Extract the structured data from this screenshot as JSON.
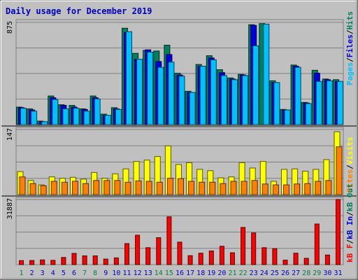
{
  "chart_data": [
    {
      "type": "bar",
      "title": "Daily usage for December 2019",
      "categories": [
        "1",
        "2",
        "3",
        "4",
        "5",
        "6",
        "7",
        "8",
        "9",
        "10",
        "11",
        "12",
        "13",
        "14",
        "15",
        "16",
        "17",
        "18",
        "19",
        "20",
        "21",
        "22",
        "23",
        "24",
        "25",
        "26",
        "27",
        "28",
        "29",
        "30",
        "31"
      ],
      "weekend_days": [
        "1",
        "7",
        "8",
        "14",
        "15",
        "21",
        "22",
        "28",
        "29"
      ],
      "ymax_label": "875",
      "ylim": [
        0,
        875
      ],
      "axis_label_parts": [
        "Pages",
        "/",
        "Files",
        "/",
        "Hits"
      ],
      "series": [
        {
          "name": "Hits",
          "color": "#00805c",
          "values": [
            150,
            135,
            30,
            245,
            170,
            165,
            135,
            245,
            90,
            145,
            825,
            610,
            635,
            630,
            680,
            440,
            285,
            515,
            590,
            470,
            400,
            430,
            855,
            865,
            375,
            130,
            510,
            190,
            465,
            390,
            385
          ]
        },
        {
          "name": "Files",
          "color": "#0000e0",
          "values": [
            145,
            125,
            25,
            230,
            165,
            150,
            130,
            230,
            80,
            135,
            790,
            560,
            640,
            540,
            600,
            425,
            275,
            500,
            570,
            445,
            390,
            425,
            850,
            0,
            360,
            125,
            500,
            185,
            440,
            385,
            370
          ]
        },
        {
          "name": "Pages",
          "color": "#00c0ff",
          "values": [
            140,
            115,
            25,
            215,
            135,
            140,
            115,
            220,
            80,
            130,
            795,
            560,
            620,
            490,
            535,
            415,
            275,
            500,
            555,
            420,
            385,
            420,
            675,
            860,
            360,
            125,
            490,
            180,
            370,
            375,
            370
          ]
        }
      ]
    },
    {
      "type": "bar",
      "ymax_label": "147",
      "ylim": [
        0,
        147
      ],
      "axis_label_parts": [
        "Sites",
        "/",
        "Visits"
      ],
      "series": [
        {
          "name": "Visits",
          "color": "#ffff00",
          "values": [
            52,
            32,
            22,
            40,
            37,
            39,
            35,
            50,
            37,
            47,
            58,
            75,
            78,
            86,
            110,
            68,
            72,
            57,
            54,
            38,
            40,
            72,
            60,
            75,
            30,
            57,
            58,
            53,
            57,
            79,
            142
          ]
        },
        {
          "name": "Sites",
          "color": "#ff8000",
          "values": [
            40,
            25,
            20,
            30,
            28,
            30,
            25,
            32,
            32,
            32,
            28,
            31,
            30,
            28,
            37,
            36,
            30,
            28,
            28,
            25,
            30,
            30,
            32,
            24,
            22,
            22,
            24,
            25,
            30,
            32,
            108
          ]
        }
      ]
    },
    {
      "type": "bar",
      "ymax_label": "31887",
      "ylim": [
        0,
        31887
      ],
      "axis_label_parts": [
        "kB F",
        "/",
        "kB In",
        "/",
        "kB Out"
      ],
      "series": [
        {
          "name": "kB F",
          "color": "#ff0000",
          "values": [
            1950,
            2000,
            2300,
            2100,
            3500,
            5500,
            4300,
            4300,
            2700,
            3300,
            10300,
            14400,
            8300,
            13200,
            23400,
            11000,
            4400,
            5600,
            6700,
            9000,
            5800,
            18200,
            15500,
            8300,
            7800,
            2200,
            5600,
            3100,
            19900,
            4700,
            31887
          ]
        }
      ]
    }
  ],
  "colors": {
    "title": "#0000c0",
    "frame": "#606060",
    "plot_bg": "#c0c0c0",
    "weekday_label": "#0000c0",
    "weekend_label": "#008040",
    "separator": "#000000"
  }
}
